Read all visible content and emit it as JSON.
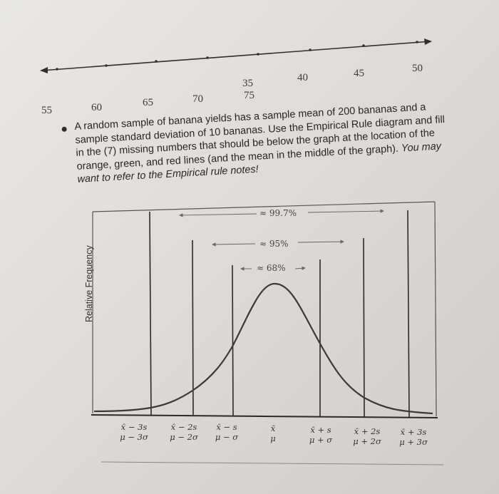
{
  "number_line": {
    "upper_labels": [
      "35",
      "40",
      "45",
      "50"
    ],
    "lower_labels": [
      "55",
      "60",
      "65",
      "70",
      "75"
    ]
  },
  "question": {
    "text": "A random sample of banana yields has a sample mean of 200 bananas and a sample standard deviation of 10 bananas. Use the Empirical Rule diagram and fill in the (7) missing numbers that should be below the graph at the location of the orange, green, and red lines (and the mean in the middle of the graph).",
    "emphasis": "You may want to refer to the Empirical rule notes!"
  },
  "graph": {
    "y_axis_label": "Relative Frequency",
    "pct_997": "≈ 99.7%",
    "pct_95": "≈ 95%",
    "pct_68": "≈ 68%",
    "labels": [
      {
        "top": "x̄ − 3s",
        "bottom": "μ − 3σ"
      },
      {
        "top": "x̄ − 2s",
        "bottom": "μ − 2σ"
      },
      {
        "top": "x̄ − s",
        "bottom": "μ − σ"
      },
      {
        "top": "x̄",
        "bottom": "μ"
      },
      {
        "top": "x̄ + s",
        "bottom": "μ + σ"
      },
      {
        "top": "x̄ + 2s",
        "bottom": "μ + 2σ"
      },
      {
        "top": "x̄ + 3s",
        "bottom": "μ + 3σ"
      }
    ]
  }
}
